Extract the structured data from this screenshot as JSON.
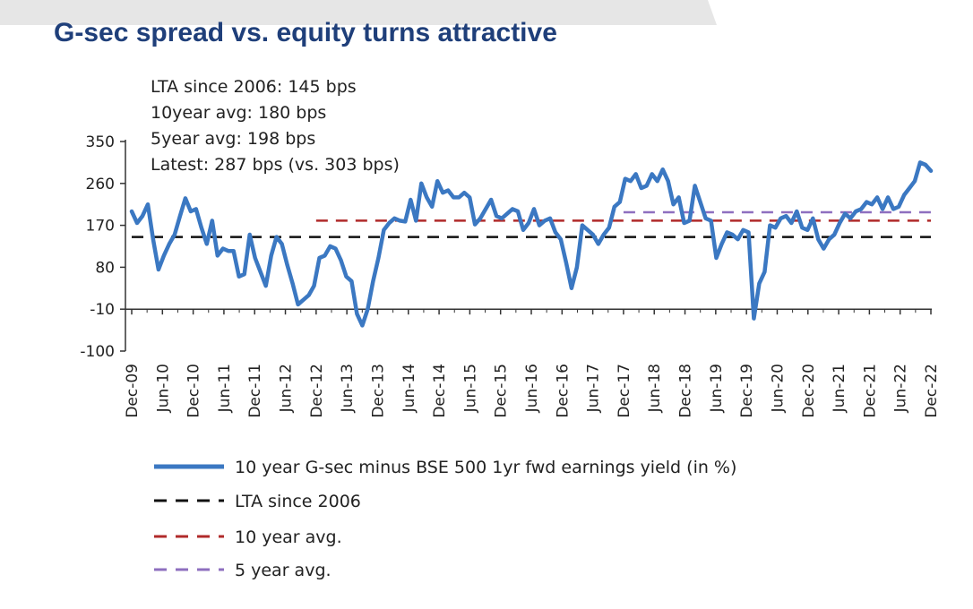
{
  "header": {
    "title": "G-sec spread vs. equity turns attractive"
  },
  "colors": {
    "title": "#1f3f7a",
    "main_line": "#3b78c2",
    "lta": "#111111",
    "avg10": "#b02a2a",
    "avg5": "#8e6fbf",
    "banner": "#e6e6e6"
  },
  "chart_data": {
    "type": "line",
    "title": "G-sec spread vs. equity turns attractive",
    "xlabel": "",
    "ylabel": "",
    "ylim": [
      -100,
      350
    ],
    "yticks": [
      350,
      260,
      170,
      80,
      -10,
      -100
    ],
    "x_tick_labels": [
      "Dec-09",
      "Jun-10",
      "Dec-10",
      "Jun-11",
      "Dec-11",
      "Jun-12",
      "Dec-12",
      "Jun-13",
      "Dec-13",
      "Jun-14",
      "Dec-14",
      "Jun-15",
      "Dec-15",
      "Jun-16",
      "Dec-16",
      "Jun-17",
      "Dec-17",
      "Jun-18",
      "Dec-18",
      "Jun-19",
      "Dec-19",
      "Jun-20",
      "Dec-20",
      "Jun-21",
      "Dec-21",
      "Jun-22",
      "Dec-22"
    ],
    "annotations": [
      "LTA since 2006: 145 bps",
      "10year avg: 180 bps",
      "5year avg: 198 bps",
      "Latest: 287 bps (vs. 303 bps)"
    ],
    "series": [
      {
        "name": "10 year G-sec minus BSE 500 1yr fwd earnings yield (in %)",
        "style": "solid",
        "values": [
          200,
          175,
          190,
          215,
          140,
          75,
          105,
          130,
          150,
          190,
          228,
          200,
          205,
          165,
          130,
          180,
          105,
          120,
          115,
          115,
          60,
          65,
          150,
          100,
          70,
          40,
          105,
          145,
          130,
          85,
          45,
          0,
          10,
          20,
          40,
          100,
          105,
          125,
          120,
          95,
          60,
          50,
          -20,
          -45,
          -10,
          50,
          100,
          160,
          175,
          185,
          180,
          178,
          225,
          180,
          260,
          230,
          210,
          265,
          240,
          245,
          230,
          230,
          240,
          230,
          172,
          185,
          205,
          225,
          190,
          185,
          195,
          205,
          200,
          160,
          175,
          205,
          170,
          180,
          185,
          155,
          140,
          90,
          35,
          80,
          170,
          160,
          150,
          130,
          150,
          165,
          210,
          220,
          270,
          265,
          280,
          250,
          255,
          280,
          265,
          290,
          265,
          215,
          230,
          175,
          180,
          255,
          220,
          185,
          180,
          100,
          130,
          155,
          150,
          140,
          160,
          155,
          -30,
          45,
          70,
          170,
          165,
          185,
          190,
          175,
          200,
          165,
          160,
          185,
          140,
          120,
          140,
          150,
          175,
          195,
          185,
          200,
          205,
          220,
          215,
          230,
          205,
          230,
          205,
          210,
          235,
          250,
          265,
          305,
          300,
          287
        ]
      },
      {
        "name": "LTA since 2006",
        "style": "dashed",
        "value": 145,
        "start": "Dec-09",
        "end": "Dec-22"
      },
      {
        "name": "10 year avg.",
        "style": "dashed",
        "value": 180,
        "start": "Dec-12",
        "end": "Dec-22"
      },
      {
        "name": "5 year avg.",
        "style": "dashed",
        "value": 198,
        "start": "Dec-17",
        "end": "Dec-22"
      }
    ],
    "legend": "bottom"
  }
}
